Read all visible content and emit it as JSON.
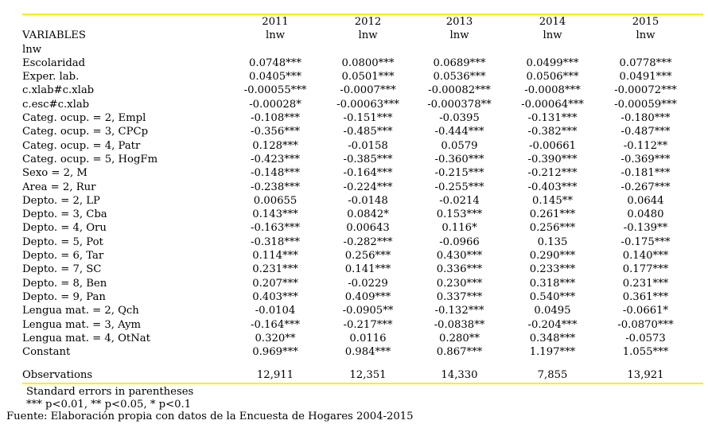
{
  "colors": {
    "rule_yellow": "#ffec00",
    "text": "#000000",
    "background": "#ffffff"
  },
  "table": {
    "variables_header": "VARIABLES",
    "depvar_row_label": "lnw",
    "year_headers": [
      "2011",
      "2012",
      "2013",
      "2014",
      "2015"
    ],
    "depvar_labels": [
      "lnw",
      "lnw",
      "lnw",
      "lnw",
      "lnw"
    ],
    "rows": [
      {
        "label": "Escolaridad",
        "values": [
          "0.0748***",
          "0.0800***",
          "0.0689***",
          "0.0499***",
          "0.0778***"
        ]
      },
      {
        "label": "Exper. lab.",
        "values": [
          "0.0405***",
          "0.0501***",
          "0.0536***",
          "0.0506***",
          "0.0491***"
        ]
      },
      {
        "label": "c.xlab#c.xlab",
        "values": [
          "-0.00055***",
          "-0.0007***",
          "-0.00082***",
          "-0.0008***",
          "-0.00072***"
        ]
      },
      {
        "label": "c.esc#c.xlab",
        "values": [
          "-0.00028*",
          "-0.00063***",
          "-0.000378**",
          "-0.00064***",
          "-0.00059***"
        ]
      },
      {
        "label": "Categ. ocup. = 2, Empl",
        "values": [
          "-0.108***",
          "-0.151***",
          "-0.0395",
          "-0.131***",
          "-0.180***"
        ]
      },
      {
        "label": "Categ. ocup. = 3, CPCp",
        "values": [
          "-0.356***",
          "-0.485***",
          "-0.444***",
          "-0.382***",
          "-0.487***"
        ]
      },
      {
        "label": "Categ. ocup. = 4, Patr",
        "values": [
          "0.128***",
          "-0.0158",
          "0.0579",
          "-0.00661",
          "-0.112**"
        ]
      },
      {
        "label": "Categ. ocup. = 5, HogFm",
        "values": [
          "-0.423***",
          "-0.385***",
          "-0.360***",
          "-0.390***",
          "-0.369***"
        ]
      },
      {
        "label": "Sexo = 2, M",
        "values": [
          "-0.148***",
          "-0.164***",
          "-0.215***",
          "-0.212***",
          "-0.181***"
        ]
      },
      {
        "label": "Area = 2, Rur",
        "values": [
          "-0.238***",
          "-0.224***",
          "-0.255***",
          "-0.403***",
          "-0.267***"
        ]
      },
      {
        "label": "Depto. = 2, LP",
        "values": [
          "0.00655",
          "-0.0148",
          "-0.0214",
          "0.145**",
          "0.0644"
        ]
      },
      {
        "label": "Depto. = 3, Cba",
        "values": [
          "0.143***",
          "0.0842*",
          "0.153***",
          "0.261***",
          "0.0480"
        ]
      },
      {
        "label": "Depto. = 4, Oru",
        "values": [
          "-0.163***",
          "0.00643",
          "0.116*",
          "0.256***",
          "-0.139**"
        ]
      },
      {
        "label": "Depto. = 5, Pot",
        "values": [
          "-0.318***",
          "-0.282***",
          "-0.0966",
          "0.135",
          "-0.175***"
        ]
      },
      {
        "label": "Depto. = 6, Tar",
        "values": [
          "0.114***",
          "0.256***",
          "0.430***",
          "0.290***",
          "0.140***"
        ]
      },
      {
        "label": "Depto. = 7, SC",
        "values": [
          "0.231***",
          "0.141***",
          "0.336***",
          "0.233***",
          "0.177***"
        ]
      },
      {
        "label": "Depto. = 8, Ben",
        "values": [
          "0.207***",
          "-0.0229",
          "0.230***",
          "0.318***",
          "0.231***"
        ]
      },
      {
        "label": "Depto. = 9, Pan",
        "values": [
          "0.403***",
          "0.409***",
          "0.337***",
          "0.540***",
          "0.361***"
        ]
      },
      {
        "label": "Lengua mat. = 2, Qch",
        "values": [
          "-0.0104",
          "-0.0905**",
          "-0.132***",
          "0.0495",
          "-0.0661*"
        ]
      },
      {
        "label": "Lengua mat. = 3, Aym",
        "values": [
          "-0.164***",
          "-0.217***",
          "-0.0838**",
          "-0.204***",
          "-0.0870***"
        ]
      },
      {
        "label": "Lengua mat. = 4, OtNat",
        "values": [
          "0.320**",
          "0.0116",
          "0.280**",
          "0.348***",
          "-0.0573"
        ]
      },
      {
        "label": "Constant",
        "values": [
          "0.969***",
          "0.984***",
          "0.867***",
          "1.197***",
          "1.055***"
        ]
      }
    ],
    "observations": {
      "label": "Observations",
      "values": [
        "12,911",
        "12,351",
        "14,330",
        "7,855",
        "13,921"
      ]
    }
  },
  "notes": {
    "standard_errors": "Standard errors in parentheses",
    "significance": "*** p<0.01, ** p<0.05, * p<0.1",
    "source": "Fuente: Elaboración propia con datos de la Encuesta de Hogares 2004-2015"
  }
}
